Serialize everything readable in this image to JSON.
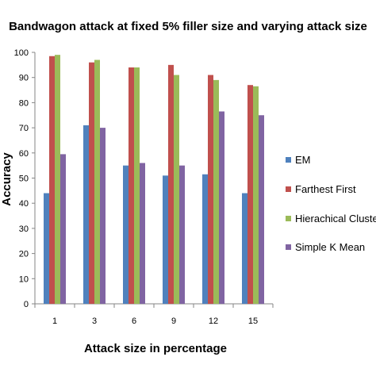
{
  "chart_data": {
    "type": "bar",
    "title": "Bandwagon attack at fixed 5% filler size and varying attack size",
    "xlabel": "Attack size in percentage",
    "ylabel": "Accuracy",
    "categories": [
      "1",
      "3",
      "6",
      "9",
      "12",
      "15"
    ],
    "ylim": [
      0,
      100
    ],
    "yticks": [
      "0",
      "10",
      "20",
      "30",
      "40",
      "50",
      "60",
      "70",
      "80",
      "90",
      "100"
    ],
    "grid": false,
    "legend_position": "right",
    "series": [
      {
        "name": "EM",
        "color": "#4f81bd",
        "values": [
          44,
          71,
          55,
          51,
          51.5,
          44
        ]
      },
      {
        "name": "Farthest First",
        "color": "#c0504d",
        "values": [
          98.5,
          96,
          94,
          95,
          91,
          87
        ]
      },
      {
        "name": "Hierachical Clustere",
        "color": "#9bbb59",
        "values": [
          99,
          97,
          94,
          91,
          89,
          86.5
        ]
      },
      {
        "name": "Simple K Mean",
        "color": "#8064a2",
        "values": [
          59.5,
          70,
          56,
          55,
          76.5,
          75
        ]
      }
    ]
  }
}
